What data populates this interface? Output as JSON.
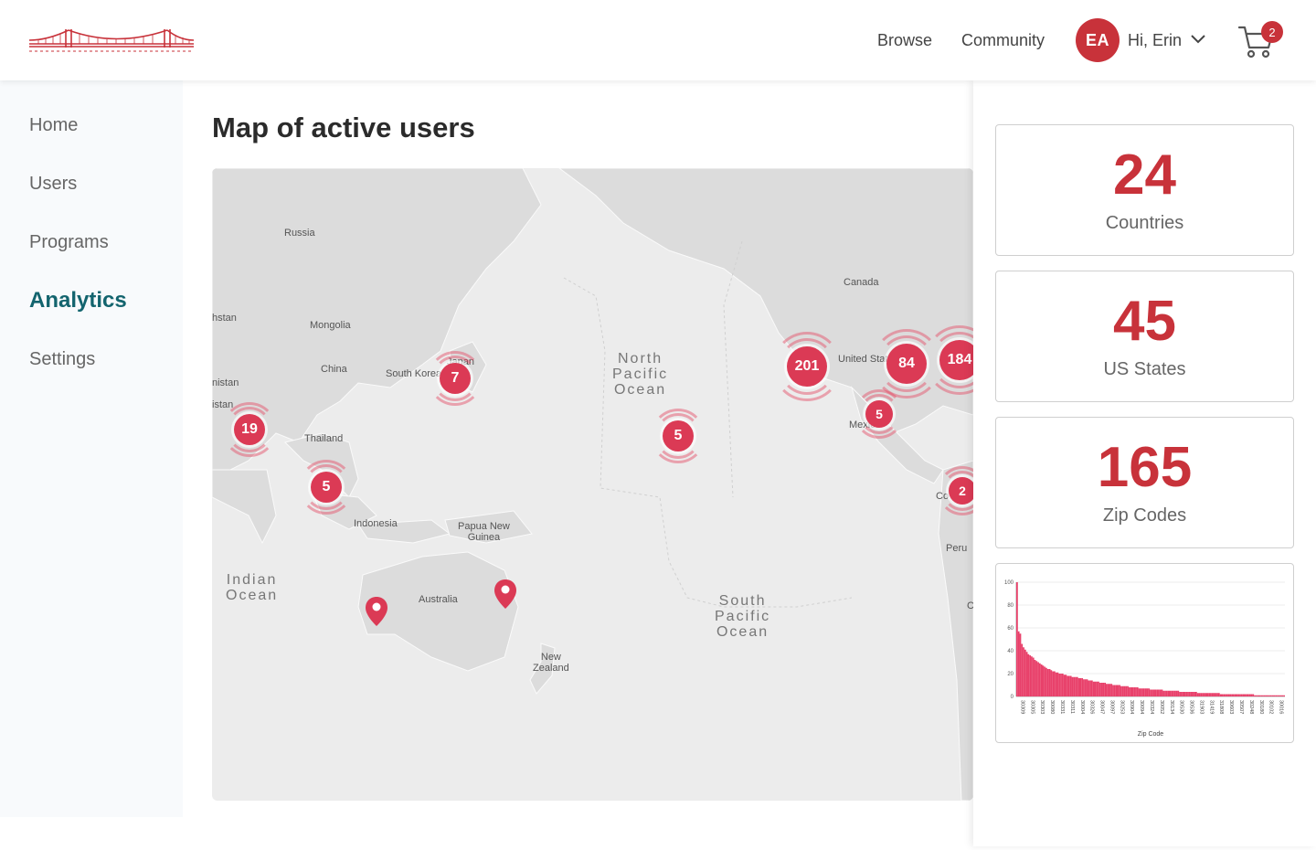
{
  "header": {
    "nav": {
      "browse": "Browse",
      "community": "Community"
    },
    "user": {
      "initials": "EA",
      "greeting": "Hi, Erin"
    },
    "cart": {
      "count": "2"
    },
    "icons": {
      "logo": "golden-gate-bridge-logo",
      "chevron": "chevron-down-icon",
      "cart": "shopping-cart-icon"
    }
  },
  "sidebar": {
    "items": [
      {
        "label": "Home",
        "active": false
      },
      {
        "label": "Users",
        "active": false
      },
      {
        "label": "Programs",
        "active": false
      },
      {
        "label": "Analytics",
        "active": true
      },
      {
        "label": "Settings",
        "active": false
      }
    ]
  },
  "main": {
    "title": "Map of active users",
    "map": {
      "labels": {
        "russia": "Russia",
        "canada": "Canada",
        "mongolia": "Mongolia",
        "china": "China",
        "south_korea": "South Korea",
        "japan": "Japan",
        "thailand": "Thailand",
        "indonesia": "Indonesia",
        "png": "Papua New\nGuinea",
        "australia": "Australia",
        "new_zealand": "New\nZealand",
        "peru": "Peru",
        "united_states": "United States",
        "mexico": "Mexico",
        "kazakhstan": "hstan",
        "afghanistan": "nistan",
        "pakistan": "istan",
        "colombia": "Co",
        "chile": "C"
      },
      "oceans": {
        "north_pacific": "North\nPacific\nOcean",
        "south_pacific": "South\nPacific\nOcean",
        "indian": "Indian\nOcean"
      },
      "clusters": [
        {
          "count": "7"
        },
        {
          "count": "19"
        },
        {
          "count": "5"
        },
        {
          "count": "5"
        },
        {
          "count": "201"
        },
        {
          "count": "84"
        },
        {
          "count": "184"
        },
        {
          "count": "5"
        },
        {
          "count": "2"
        }
      ]
    }
  },
  "stats": [
    {
      "value": "24",
      "label": "Countries"
    },
    {
      "value": "45",
      "label": "US States"
    },
    {
      "value": "165",
      "label": "Zip Codes"
    }
  ],
  "colors": {
    "accent": "#c8323a",
    "active_nav": "#13646e",
    "cluster": "#db3a55",
    "bar": "#e8406a"
  },
  "chart_data": {
    "type": "bar",
    "xlabel": "Zip Code",
    "ylabel": "",
    "ylim": [
      0,
      100
    ],
    "yticks": [
      0,
      20,
      40,
      60,
      80,
      100
    ],
    "tick_labels": [
      "30309",
      "30305",
      "30303",
      "30080",
      "30331",
      "30311",
      "30004",
      "30326",
      "30047",
      "30097",
      "30253",
      "30904",
      "30094",
      "30324",
      "30052",
      "30134",
      "30530",
      "30536",
      "31903",
      "31419",
      "31808",
      "30603",
      "30507",
      "30248",
      "30180",
      "30102",
      "30016"
    ],
    "values": [
      100,
      57,
      55,
      46,
      43,
      41,
      39,
      37,
      36,
      35,
      34,
      32,
      31,
      30,
      29,
      28,
      27,
      26,
      25,
      24,
      24,
      23,
      22,
      22,
      21,
      21,
      20,
      20,
      20,
      19,
      19,
      18,
      18,
      18,
      17,
      17,
      17,
      17,
      16,
      16,
      16,
      15,
      15,
      15,
      14,
      14,
      14,
      13,
      13,
      13,
      13,
      12,
      12,
      12,
      12,
      11,
      11,
      11,
      11,
      10,
      10,
      10,
      10,
      10,
      9,
      9,
      9,
      9,
      9,
      8,
      8,
      8,
      8,
      8,
      8,
      7,
      7,
      7,
      7,
      7,
      7,
      7,
      6,
      6,
      6,
      6,
      6,
      6,
      6,
      6,
      5,
      5,
      5,
      5,
      5,
      5,
      5,
      5,
      5,
      5,
      4,
      4,
      4,
      4,
      4,
      4,
      4,
      4,
      4,
      4,
      4,
      3,
      3,
      3,
      3,
      3,
      3,
      3,
      3,
      3,
      3,
      3,
      3,
      3,
      3,
      2,
      2,
      2,
      2,
      2,
      2,
      2,
      2,
      2,
      2,
      2,
      2,
      2,
      2,
      2,
      2,
      2,
      2,
      2,
      2,
      2,
      1,
      1,
      1,
      1,
      1,
      1,
      1,
      1,
      1,
      1,
      1,
      1,
      1,
      1,
      1,
      1,
      1,
      1,
      1
    ]
  }
}
